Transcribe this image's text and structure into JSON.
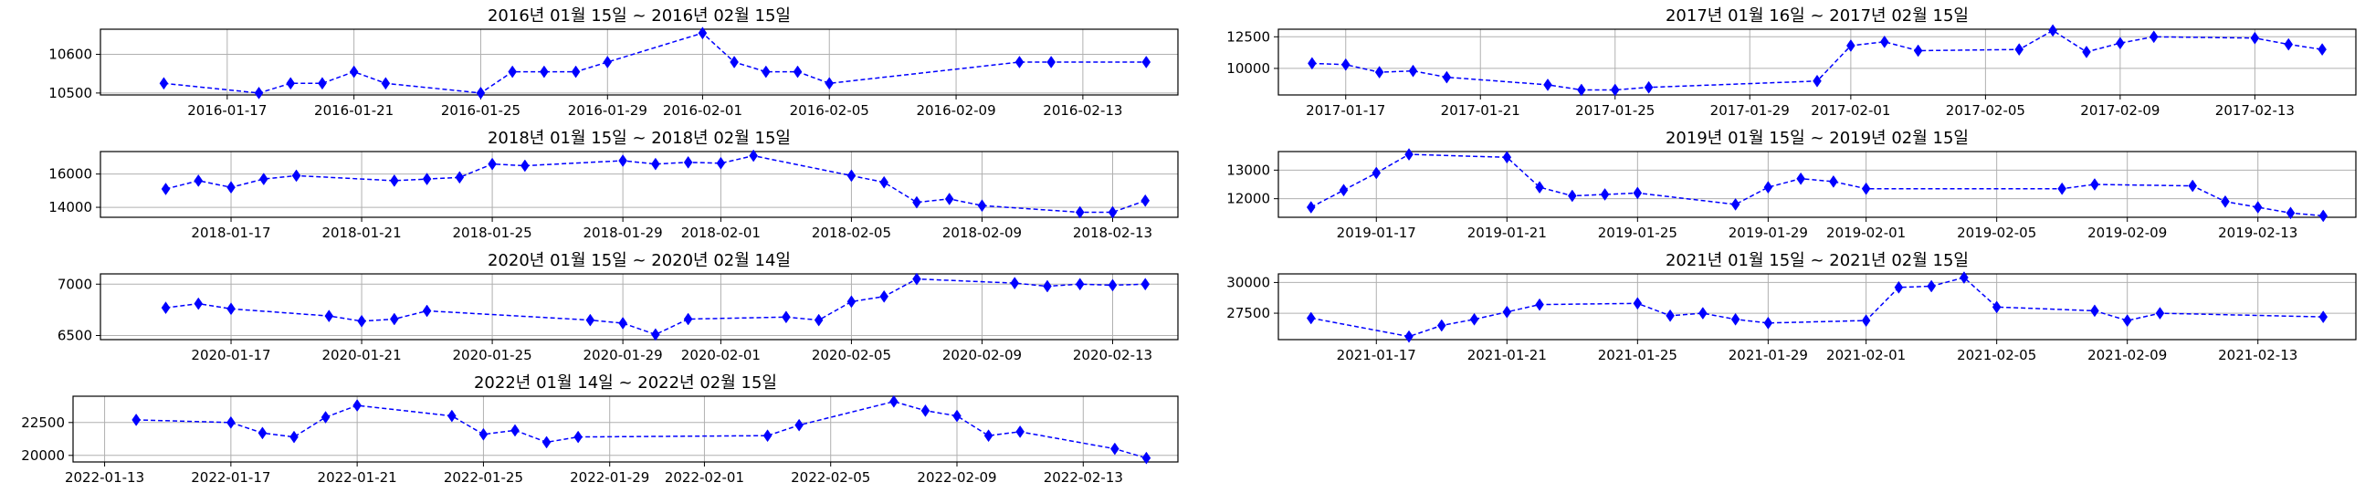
{
  "chart_data": [
    {
      "type": "line",
      "title": "2016년 01월 15일 ~ 2016년 02월 15일",
      "x_tick_labels": [
        "2016-01-17",
        "2016-01-21",
        "2016-01-25",
        "2016-01-29",
        "2016-02-01",
        "2016-02-05",
        "2016-02-09",
        "2016-02-13"
      ],
      "y_tick_labels": [
        "10500",
        "10600"
      ],
      "ylim": [
        10495,
        10665
      ],
      "marker": "diamond",
      "line_style": "dashed",
      "color": "#0000ff",
      "grid": true,
      "x": [
        "2016-01-15",
        "2016-01-18",
        "2016-01-19",
        "2016-01-20",
        "2016-01-21",
        "2016-01-22",
        "2016-01-25",
        "2016-01-26",
        "2016-01-27",
        "2016-01-28",
        "2016-01-29",
        "2016-02-01",
        "2016-02-02",
        "2016-02-03",
        "2016-02-04",
        "2016-02-05",
        "2016-02-11",
        "2016-02-12",
        "2016-02-15"
      ],
      "y": [
        10525,
        10500,
        10525,
        10525,
        10555,
        10525,
        10500,
        10555,
        10555,
        10555,
        10580,
        10655,
        10580,
        10555,
        10555,
        10525,
        10580,
        10580,
        10580
      ]
    },
    {
      "type": "line",
      "title": "2017년 01월 16일 ~ 2017년 02월 15일",
      "x_tick_labels": [
        "2017-01-17",
        "2017-01-21",
        "2017-01-25",
        "2017-01-29",
        "2017-02-01",
        "2017-02-05",
        "2017-02-09",
        "2017-02-13"
      ],
      "y_tick_labels": [
        "10000",
        "12500"
      ],
      "ylim": [
        7900,
        13100
      ],
      "marker": "diamond",
      "line_style": "dashed",
      "color": "#0000ff",
      "grid": true,
      "x": [
        "2017-01-16",
        "2017-01-17",
        "2017-01-18",
        "2017-01-19",
        "2017-01-20",
        "2017-01-23",
        "2017-01-24",
        "2017-01-25",
        "2017-01-26",
        "2017-01-31",
        "2017-02-01",
        "2017-02-02",
        "2017-02-03",
        "2017-02-06",
        "2017-02-07",
        "2017-02-08",
        "2017-02-09",
        "2017-02-10",
        "2017-02-13",
        "2017-02-14",
        "2017-02-15"
      ],
      "y": [
        10400,
        10300,
        9700,
        9800,
        9300,
        8700,
        8300,
        8300,
        8500,
        9000,
        11800,
        12100,
        11400,
        11500,
        13000,
        11300,
        12000,
        12500,
        12400,
        11900,
        11500
      ]
    },
    {
      "type": "line",
      "title": "2018년 01월 15일 ~ 2018년 02월 15일",
      "x_tick_labels": [
        "2018-01-17",
        "2018-01-21",
        "2018-01-25",
        "2018-01-29",
        "2018-02-01",
        "2018-02-05",
        "2018-02-09",
        "2018-02-13"
      ],
      "y_tick_labels": [
        "14000",
        "16000"
      ],
      "ylim": [
        13400,
        17350
      ],
      "marker": "diamond",
      "line_style": "dashed",
      "color": "#0000ff",
      "grid": true,
      "x": [
        "2018-01-15",
        "2018-01-16",
        "2018-01-17",
        "2018-01-18",
        "2018-01-19",
        "2018-01-22",
        "2018-01-23",
        "2018-01-24",
        "2018-01-25",
        "2018-01-26",
        "2018-01-29",
        "2018-01-30",
        "2018-01-31",
        "2018-02-01",
        "2018-02-02",
        "2018-02-05",
        "2018-02-06",
        "2018-02-07",
        "2018-02-08",
        "2018-02-09",
        "2018-02-12",
        "2018-02-13",
        "2018-02-14"
      ],
      "y": [
        15100,
        15600,
        15200,
        15700,
        15900,
        15600,
        15700,
        15800,
        16600,
        16500,
        16800,
        16600,
        16700,
        16650,
        17100,
        15900,
        15500,
        14300,
        14500,
        14100,
        13700,
        13700,
        14400
      ]
    },
    {
      "type": "line",
      "title": "2019년 01월 15일 ~ 2019년 02월 15일",
      "x_tick_labels": [
        "2019-01-17",
        "2019-01-21",
        "2019-01-25",
        "2019-01-29",
        "2019-02-01",
        "2019-02-05",
        "2019-02-09",
        "2019-02-13"
      ],
      "y_tick_labels": [
        "12000",
        "13000"
      ],
      "ylim": [
        11350,
        13650
      ],
      "marker": "diamond",
      "line_style": "dashed",
      "color": "#0000ff",
      "grid": true,
      "x": [
        "2019-01-15",
        "2019-01-16",
        "2019-01-17",
        "2019-01-18",
        "2019-01-21",
        "2019-01-22",
        "2019-01-23",
        "2019-01-24",
        "2019-01-25",
        "2019-01-28",
        "2019-01-29",
        "2019-01-30",
        "2019-01-31",
        "2019-02-01",
        "2019-02-07",
        "2019-02-08",
        "2019-02-11",
        "2019-02-12",
        "2019-02-13",
        "2019-02-14",
        "2019-02-15"
      ],
      "y": [
        11700,
        12300,
        12900,
        13550,
        13450,
        12400,
        12100,
        12150,
        12200,
        11800,
        12400,
        12700,
        12600,
        12350,
        12350,
        12500,
        12450,
        11900,
        11700,
        11500,
        11400
      ]
    },
    {
      "type": "line",
      "title": "2020년 01월 15일 ~ 2020년 02월 14일",
      "x_tick_labels": [
        "2020-01-17",
        "2020-01-21",
        "2020-01-25",
        "2020-01-29",
        "2020-02-01",
        "2020-02-05",
        "2020-02-09",
        "2020-02-13"
      ],
      "y_tick_labels": [
        "6500",
        "7000"
      ],
      "ylim": [
        6460,
        7100
      ],
      "marker": "diamond",
      "line_style": "dashed",
      "color": "#0000ff",
      "grid": true,
      "x": [
        "2020-01-15",
        "2020-01-16",
        "2020-01-17",
        "2020-01-20",
        "2020-01-21",
        "2020-01-22",
        "2020-01-23",
        "2020-01-28",
        "2020-01-29",
        "2020-01-30",
        "2020-01-31",
        "2020-02-03",
        "2020-02-04",
        "2020-02-05",
        "2020-02-06",
        "2020-02-07",
        "2020-02-10",
        "2020-02-11",
        "2020-02-12",
        "2020-02-13",
        "2020-02-14"
      ],
      "y": [
        6770,
        6810,
        6760,
        6690,
        6640,
        6660,
        6740,
        6650,
        6620,
        6510,
        6660,
        6680,
        6650,
        6830,
        6880,
        7050,
        7010,
        6980,
        7000,
        6990,
        7000
      ]
    },
    {
      "type": "line",
      "title": "2021년 01월 15일 ~ 2021년 02월 15일",
      "x_tick_labels": [
        "2021-01-17",
        "2021-01-21",
        "2021-01-25",
        "2021-01-29",
        "2021-02-01",
        "2021-02-05",
        "2021-02-09",
        "2021-02-13"
      ],
      "y_tick_labels": [
        "27500",
        "30000"
      ],
      "ylim": [
        25350,
        30700
      ],
      "marker": "diamond",
      "line_style": "dashed",
      "color": "#0000ff",
      "grid": true,
      "x": [
        "2021-01-15",
        "2021-01-18",
        "2021-01-19",
        "2021-01-20",
        "2021-01-21",
        "2021-01-22",
        "2021-01-25",
        "2021-01-26",
        "2021-01-27",
        "2021-01-28",
        "2021-01-29",
        "2021-02-01",
        "2021-02-02",
        "2021-02-03",
        "2021-02-04",
        "2021-02-05",
        "2021-02-08",
        "2021-02-09",
        "2021-02-10",
        "2021-02-15"
      ],
      "y": [
        27100,
        25600,
        26500,
        27000,
        27600,
        28200,
        28300,
        27300,
        27500,
        27000,
        26700,
        26900,
        29600,
        29700,
        30400,
        28000,
        27700,
        26900,
        27500,
        27200
      ]
    },
    {
      "type": "line",
      "title": "2022년 01월 14일 ~ 2022년 02월 15일",
      "x_tick_labels": [
        "2022-01-13",
        "2022-01-17",
        "2022-01-21",
        "2022-01-25",
        "2022-01-29",
        "2022-02-01",
        "2022-02-05",
        "2022-02-09",
        "2022-02-13"
      ],
      "y_tick_labels": [
        "20000",
        "22500"
      ],
      "ylim": [
        19500,
        24500
      ],
      "marker": "diamond",
      "line_style": "dashed",
      "color": "#0000ff",
      "grid": true,
      "x": [
        "2022-01-14",
        "2022-01-17",
        "2022-01-18",
        "2022-01-19",
        "2022-01-20",
        "2022-01-21",
        "2022-01-24",
        "2022-01-25",
        "2022-01-26",
        "2022-01-27",
        "2022-01-28",
        "2022-02-03",
        "2022-02-04",
        "2022-02-07",
        "2022-02-08",
        "2022-02-09",
        "2022-02-10",
        "2022-02-11",
        "2022-02-14",
        "2022-02-15"
      ],
      "y": [
        22700,
        22500,
        21700,
        21400,
        22900,
        23800,
        23000,
        21600,
        21900,
        21000,
        21400,
        21500,
        22300,
        24100,
        23400,
        23000,
        21500,
        21800,
        20500,
        19800
      ]
    }
  ]
}
